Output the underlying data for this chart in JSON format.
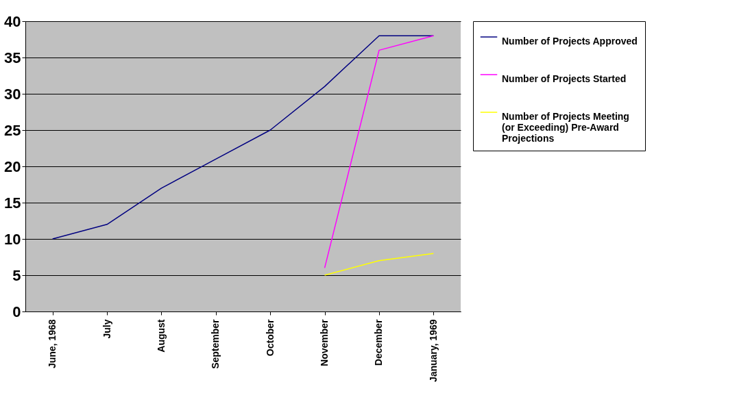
{
  "chart_data": {
    "type": "line",
    "categories": [
      "June, 1968",
      "July",
      "August",
      "September",
      "October",
      "November",
      "December",
      "January, 1969"
    ],
    "series": [
      {
        "name": "Number of Projects Approved",
        "color": "#000080",
        "values": [
          10,
          12,
          17,
          21,
          25,
          31,
          38,
          38
        ]
      },
      {
        "name": "Number of Projects Started",
        "color": "#ff00ff",
        "values": [
          null,
          null,
          null,
          null,
          null,
          6,
          36,
          38
        ]
      },
      {
        "name": "Number of Projects Meeting (or Exceeding) Pre-Award Projections",
        "color": "#ffff00",
        "values": [
          null,
          null,
          null,
          null,
          null,
          5,
          7,
          8
        ]
      }
    ],
    "ylim": [
      0,
      40
    ],
    "yticks": [
      0,
      5,
      10,
      15,
      20,
      25,
      30,
      35,
      40
    ],
    "grid": "y",
    "legend": "right",
    "marker": "none",
    "line_style": "solid"
  }
}
